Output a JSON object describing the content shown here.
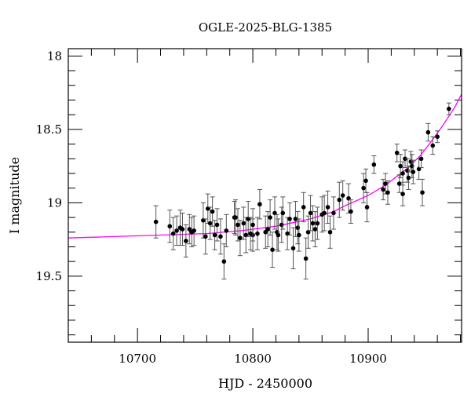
{
  "chart_data": {
    "type": "scatter",
    "title": "OGLE-2025-BLG-1385",
    "xlabel": "HJD - 2450000",
    "ylabel": "I magnitude",
    "xlim": [
      10640,
      10981
    ],
    "ylim": [
      19.95,
      17.95
    ],
    "y_inverted": true,
    "x_ticks": [
      10700,
      10800,
      10900
    ],
    "x_minor_step": 20,
    "y_ticks": [
      18,
      18.5,
      19,
      19.5
    ],
    "y_tick_labels": [
      "18",
      "18.5",
      "19",
      "19.5"
    ],
    "y_minor_step": 0.1,
    "colors": {
      "points": "#000000",
      "errorbars": "#555555",
      "model": "#ff00ff"
    },
    "points": {
      "x": [
        10716,
        10728,
        10731,
        10734,
        10737,
        10739,
        10742,
        10745,
        10747,
        10749,
        10757,
        10759,
        10761,
        10763,
        10765,
        10767,
        10769,
        10772,
        10775,
        10777,
        10784,
        10785,
        10787,
        10789,
        10792,
        10794,
        10796,
        10798,
        10800,
        10800,
        10804,
        10806,
        10811,
        10813,
        10815,
        10817,
        10819,
        10821,
        10822,
        10825,
        10826,
        10830,
        10832,
        10835,
        10837,
        10839,
        10840,
        10844,
        10846,
        10848,
        10850,
        10852,
        10854,
        10856,
        10860,
        10862,
        10865,
        10867,
        10870,
        10875,
        10878,
        10883,
        10885,
        10896,
        10898,
        10899,
        10905,
        10913,
        10915,
        10917,
        10925,
        10927,
        10928,
        10930,
        10930,
        10932,
        10934,
        10935,
        10937,
        10938,
        10939,
        10944,
        10946,
        10947,
        10952,
        10956,
        10960,
        10970
      ],
      "y": [
        19.13,
        19.16,
        19.21,
        19.19,
        19.17,
        19.18,
        19.26,
        19.18,
        19.2,
        19.19,
        19.12,
        19.23,
        19.04,
        19.14,
        19.06,
        19.22,
        19.15,
        19.23,
        19.4,
        19.19,
        19.1,
        19.1,
        19.15,
        19.24,
        19.14,
        19.22,
        19.11,
        19.21,
        19.22,
        19.15,
        19.21,
        19.01,
        19.2,
        19.18,
        19.1,
        19.32,
        19.07,
        19.2,
        19.22,
        19.15,
        19.07,
        19.21,
        19.11,
        19.31,
        19.11,
        19.17,
        19.22,
        19.03,
        19.38,
        19.2,
        19.07,
        19.14,
        19.18,
        19.14,
        19.08,
        19.07,
        19.03,
        19.2,
        19.07,
        18.98,
        18.95,
        18.97,
        19.06,
        18.9,
        18.85,
        19.03,
        18.74,
        18.91,
        18.87,
        18.93,
        18.66,
        18.87,
        18.75,
        18.8,
        18.94,
        18.7,
        18.78,
        18.83,
        18.72,
        18.75,
        18.79,
        18.77,
        18.7,
        18.93,
        18.52,
        18.61,
        18.55,
        18.36
      ],
      "err": [
        0.11,
        0.11,
        0.11,
        0.1,
        0.12,
        0.11,
        0.11,
        0.1,
        0.1,
        0.1,
        0.12,
        0.12,
        0.1,
        0.11,
        0.1,
        0.1,
        0.11,
        0.12,
        0.12,
        0.11,
        0.11,
        0.12,
        0.11,
        0.12,
        0.11,
        0.12,
        0.12,
        0.11,
        0.11,
        0.11,
        0.11,
        0.1,
        0.11,
        0.12,
        0.12,
        0.12,
        0.11,
        0.12,
        0.11,
        0.12,
        0.11,
        0.11,
        0.11,
        0.14,
        0.12,
        0.11,
        0.11,
        0.1,
        0.14,
        0.11,
        0.12,
        0.12,
        0.12,
        0.11,
        0.12,
        0.12,
        0.11,
        0.11,
        0.11,
        0.12,
        0.1,
        0.1,
        0.08,
        0.1,
        0.08,
        0.1,
        0.06,
        0.07,
        0.07,
        0.08,
        0.06,
        0.06,
        0.08,
        0.08,
        0.08,
        0.06,
        0.08,
        0.08,
        0.07,
        0.08,
        0.08,
        0.07,
        0.06,
        0.09,
        0.06,
        0.06,
        0.04,
        0.04
      ]
    },
    "model": {
      "x": [
        10640,
        10680,
        10720,
        10760,
        10790,
        10820,
        10850,
        10870,
        10880,
        10900,
        10915,
        10925,
        10935,
        10945,
        10955,
        10965,
        10975,
        10981
      ],
      "y": [
        19.24,
        19.23,
        19.22,
        19.21,
        19.19,
        19.16,
        19.11,
        19.06,
        19.02,
        18.95,
        18.88,
        18.82,
        18.76,
        18.68,
        18.58,
        18.47,
        18.35,
        18.26
      ]
    }
  }
}
